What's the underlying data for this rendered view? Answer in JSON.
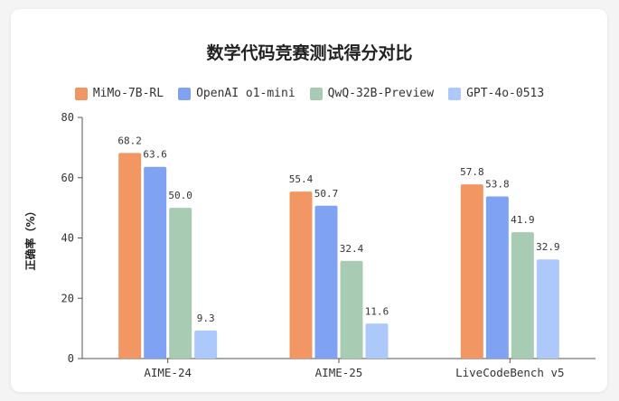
{
  "chart_data": {
    "type": "bar",
    "title": "数学代码竞赛测试得分对比",
    "ylabel": "正确率（%）",
    "ylim": [
      0,
      80
    ],
    "yticks": [
      0,
      20,
      40,
      60,
      80
    ],
    "categories": [
      "AIME-24",
      "AIME-25",
      "LiveCodeBench v5"
    ],
    "series": [
      {
        "name": "MiMo-7B-RL",
        "color": "#f29763",
        "values": [
          68.2,
          55.4,
          57.8
        ]
      },
      {
        "name": "OpenAI o1-mini",
        "color": "#7fa3f2",
        "values": [
          63.6,
          50.7,
          53.8
        ]
      },
      {
        "name": "QwQ-32B-Preview",
        "color": "#a8cbb3",
        "values": [
          50.0,
          32.4,
          41.9
        ]
      },
      {
        "name": "GPT-4o-0513",
        "color": "#adc8fb",
        "values": [
          9.3,
          11.6,
          32.9
        ]
      }
    ],
    "legend_position": "top",
    "grid": false
  }
}
